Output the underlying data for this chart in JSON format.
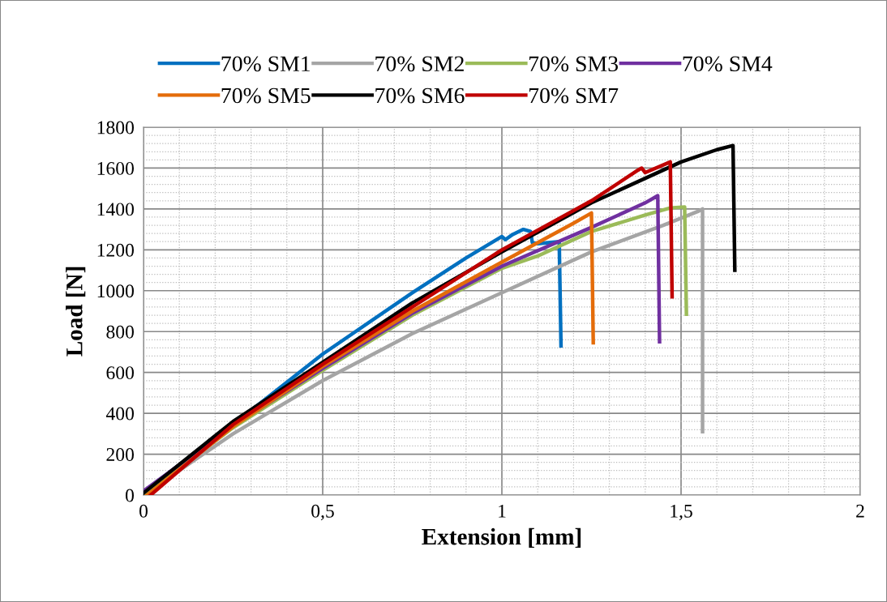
{
  "chart_data": {
    "type": "line",
    "xlabel": "Extension [mm]",
    "ylabel": "Load [N]",
    "xlim": [
      0,
      2
    ],
    "xticks": [
      0,
      {
        "value": 0.5,
        "label": "0,5"
      },
      1,
      {
        "value": 1.5,
        "label": "1,5"
      },
      2
    ],
    "ylim": [
      0,
      1800
    ],
    "yticks": [
      0,
      200,
      400,
      600,
      800,
      1000,
      1200,
      1400,
      1600,
      1800
    ],
    "grid": true,
    "legend": "top",
    "line_style": "solid",
    "marker": "none",
    "series": [
      {
        "name": "70% SM1",
        "color": "#0070c0",
        "x": [
          0,
          0.1,
          0.25,
          0.5,
          0.75,
          0.9,
          1.0,
          1.01,
          1.03,
          1.06,
          1.08,
          1.085,
          1.1,
          1.16,
          1.165
        ],
        "values": [
          0,
          140,
          345,
          690,
          990,
          1160,
          1265,
          1250,
          1275,
          1300,
          1290,
          1235,
          1230,
          1240,
          730
        ]
      },
      {
        "name": "70% SM2",
        "color": "#a5a5a5",
        "x": [
          0,
          0.25,
          0.5,
          0.75,
          1.0,
          1.25,
          1.45,
          1.55,
          1.56,
          1.56
        ],
        "values": [
          0,
          300,
          560,
          790,
          990,
          1190,
          1320,
          1390,
          1400,
          310
        ]
      },
      {
        "name": "70% SM3",
        "color": "#9bbb59",
        "x": [
          0,
          0.25,
          0.5,
          0.75,
          1.0,
          1.1,
          1.25,
          1.4,
          1.47,
          1.51,
          1.515
        ],
        "values": [
          0,
          330,
          610,
          880,
          1110,
          1170,
          1290,
          1370,
          1405,
          1410,
          885
        ]
      },
      {
        "name": "70% SM4",
        "color": "#7030a0",
        "x": [
          0,
          0.25,
          0.5,
          0.75,
          1.0,
          1.25,
          1.4,
          1.435,
          1.44
        ],
        "values": [
          20,
          340,
          620,
          890,
          1120,
          1310,
          1430,
          1465,
          750
        ]
      },
      {
        "name": "70% SM5",
        "color": "#e46c0a",
        "x": [
          0.01,
          0.25,
          0.5,
          0.75,
          1.0,
          1.2,
          1.25,
          1.255
        ],
        "values": [
          0,
          335,
          630,
          900,
          1140,
          1330,
          1380,
          745
        ]
      },
      {
        "name": "70% SM6",
        "color": "#000000",
        "x": [
          0,
          0.25,
          0.5,
          0.75,
          1.0,
          1.25,
          1.5,
          1.6,
          1.645,
          1.65
        ],
        "values": [
          10,
          360,
          650,
          940,
          1190,
          1430,
          1630,
          1690,
          1710,
          1100
        ]
      },
      {
        "name": "70% SM7",
        "color": "#c00000",
        "x": [
          0.02,
          0.25,
          0.5,
          0.75,
          1.0,
          1.25,
          1.38,
          1.39,
          1.4,
          1.47,
          1.475
        ],
        "values": [
          0,
          345,
          640,
          920,
          1200,
          1440,
          1590,
          1600,
          1578,
          1630,
          970
        ]
      }
    ]
  }
}
